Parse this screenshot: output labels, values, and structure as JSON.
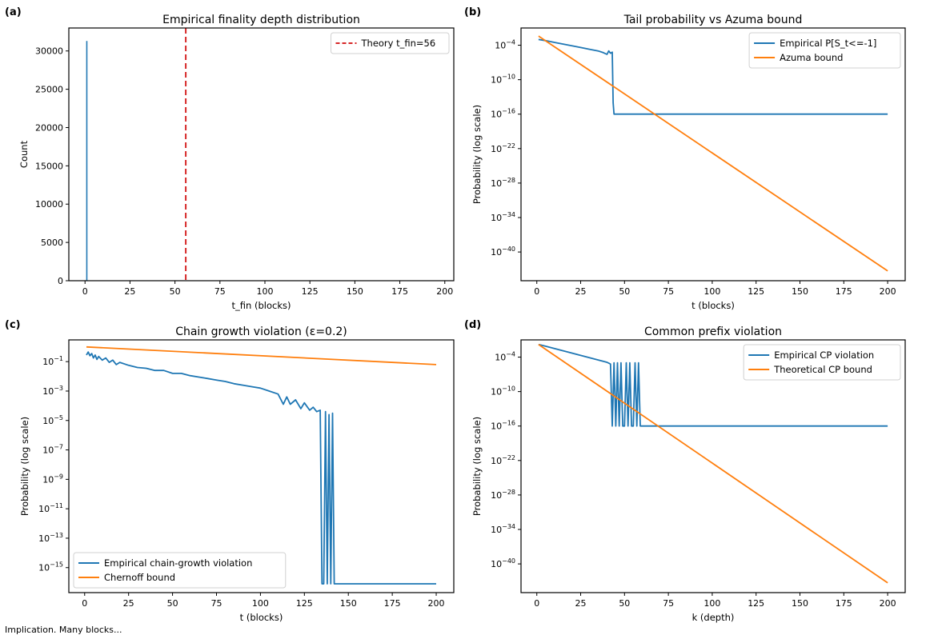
{
  "figure_caption": "Implication. Many blocks...",
  "colors": {
    "blue": "#1f77b4",
    "orange": "#ff7f0e",
    "red": "#d62728"
  },
  "chart_data": [
    {
      "panel": "(a)",
      "type": "bar",
      "title": "Empirical finality depth distribution",
      "xlabel": "t_fin (blocks)",
      "ylabel": "Count",
      "xlim": [
        -9,
        205
      ],
      "ylim": [
        0,
        33000
      ],
      "xticks": [
        0,
        25,
        50,
        75,
        100,
        125,
        150,
        175,
        200
      ],
      "yticks": [
        0,
        5000,
        10000,
        15000,
        20000,
        25000,
        30000
      ],
      "histogram": {
        "x": [
          1
        ],
        "values": [
          31300
        ]
      },
      "vline": {
        "x": 56,
        "label": "Theory t_fin=56"
      },
      "legend": {
        "location": "upper right",
        "entries": [
          "Theory t_fin=56"
        ]
      }
    },
    {
      "panel": "(b)",
      "type": "line",
      "title": "Tail probability vs Azuma bound",
      "xlabel": "t (blocks)",
      "ylabel": "Probability (log scale)",
      "yscale": "log",
      "xlim": [
        -9,
        210
      ],
      "ylim": [
        1e-45,
        0.1
      ],
      "xticks": [
        0,
        25,
        50,
        75,
        100,
        125,
        150,
        175,
        200
      ],
      "yticks": [
        -4,
        -10,
        -16,
        -22,
        -28,
        -34,
        -40
      ],
      "series": [
        {
          "name": "Empirical  P[S_t<=-1]",
          "x": [
            1,
            5,
            10,
            15,
            20,
            25,
            30,
            35,
            38,
            40,
            41,
            42,
            43,
            43.5,
            44,
            60,
            80,
            100,
            120,
            140,
            160,
            180,
            200
          ],
          "log10": [
            -3.0,
            -3.2,
            -3.5,
            -3.8,
            -4.1,
            -4.4,
            -4.7,
            -5.0,
            -5.3,
            -5.6,
            -5.0,
            -5.4,
            -5.2,
            -14,
            -16,
            -16,
            -16,
            -16,
            -16,
            -16,
            -16,
            -16,
            -16
          ]
        },
        {
          "name": "Azuma bound",
          "x": [
            1,
            200
          ],
          "log10": [
            -2.4,
            -43.3
          ]
        }
      ],
      "legend": {
        "location": "upper right",
        "entries": [
          "Empirical  P[S_t<=-1]",
          "Azuma bound"
        ]
      }
    },
    {
      "panel": "(c)",
      "type": "line",
      "title": "Chain growth violation (ε=0.2)",
      "xlabel": "t (blocks)",
      "ylabel": "Probability (log scale)",
      "yscale": "log",
      "xlim": [
        -9,
        210
      ],
      "ylim": [
        2e-17,
        3
      ],
      "xticks": [
        0,
        25,
        50,
        75,
        100,
        125,
        150,
        175,
        200
      ],
      "yticks": [
        -1,
        -3,
        -5,
        -7,
        -9,
        -11,
        -13,
        -15
      ],
      "series": [
        {
          "name": "Empirical chain-growth violation",
          "x": [
            1,
            2,
            3,
            4,
            5,
            6,
            7,
            8,
            10,
            12,
            14,
            16,
            18,
            20,
            25,
            30,
            35,
            40,
            45,
            50,
            55,
            60,
            65,
            70,
            75,
            80,
            85,
            90,
            95,
            100,
            105,
            110,
            113,
            115,
            117,
            120,
            123,
            125,
            128,
            130,
            132,
            134,
            135,
            136,
            137,
            138,
            139,
            140,
            141,
            142,
            143,
            150,
            175,
            200
          ],
          "log10": [
            -0.55,
            -0.35,
            -0.6,
            -0.45,
            -0.75,
            -0.55,
            -0.85,
            -0.65,
            -0.9,
            -0.75,
            -1.05,
            -0.9,
            -1.2,
            -1.05,
            -1.25,
            -1.4,
            -1.45,
            -1.6,
            -1.6,
            -1.8,
            -1.8,
            -1.95,
            -2.05,
            -2.15,
            -2.25,
            -2.35,
            -2.5,
            -2.6,
            -2.7,
            -2.8,
            -3.0,
            -3.2,
            -3.9,
            -3.4,
            -3.9,
            -3.6,
            -4.2,
            -3.8,
            -4.3,
            -4.1,
            -4.4,
            -4.3,
            -16.1,
            -16.1,
            -4.4,
            -16.1,
            -4.6,
            -16.1,
            -4.5,
            -16.1,
            -16.1,
            -16.1,
            -16.1,
            -16.1
          ]
        },
        {
          "name": "Chernoff bound",
          "x": [
            1,
            200
          ],
          "log10": [
            0.0,
            -1.2
          ]
        }
      ],
      "legend": {
        "location": "lower left",
        "entries": [
          "Empirical chain-growth violation",
          "Chernoff bound"
        ]
      }
    },
    {
      "panel": "(d)",
      "type": "line",
      "title": "Common prefix violation",
      "xlabel": "k (depth)",
      "ylabel": "Probability (log scale)",
      "yscale": "log",
      "xlim": [
        -9,
        210
      ],
      "ylim": [
        1e-45,
        0.1
      ],
      "xticks": [
        0,
        25,
        50,
        75,
        100,
        125,
        150,
        175,
        200
      ],
      "yticks": [
        -4,
        -10,
        -16,
        -22,
        -28,
        -34,
        -40
      ],
      "series": [
        {
          "name": "Empirical CP violation",
          "x": [
            1,
            5,
            10,
            15,
            20,
            25,
            30,
            35,
            40,
            42,
            43,
            44,
            45,
            46,
            47,
            48,
            49,
            50,
            51,
            52,
            53,
            54,
            55,
            56,
            57,
            58,
            59,
            60,
            80,
            100,
            120,
            140,
            160,
            180,
            200
          ],
          "log10": [
            -1.8,
            -2.1,
            -2.5,
            -2.9,
            -3.3,
            -3.7,
            -4.1,
            -4.5,
            -4.9,
            -5.2,
            -16,
            -5.0,
            -16,
            -5.0,
            -16,
            -5.0,
            -16,
            -16,
            -5.0,
            -16,
            -5.0,
            -16,
            -16,
            -5.0,
            -16,
            -5.0,
            -16,
            -16,
            -16,
            -16,
            -16,
            -16,
            -16,
            -16,
            -16
          ]
        },
        {
          "name": "Theoretical CP bound",
          "x": [
            1,
            200
          ],
          "log10": [
            -1.8,
            -43.3
          ]
        }
      ],
      "legend": {
        "location": "upper right",
        "entries": [
          "Empirical CP violation",
          "Theoretical CP bound"
        ]
      }
    }
  ]
}
